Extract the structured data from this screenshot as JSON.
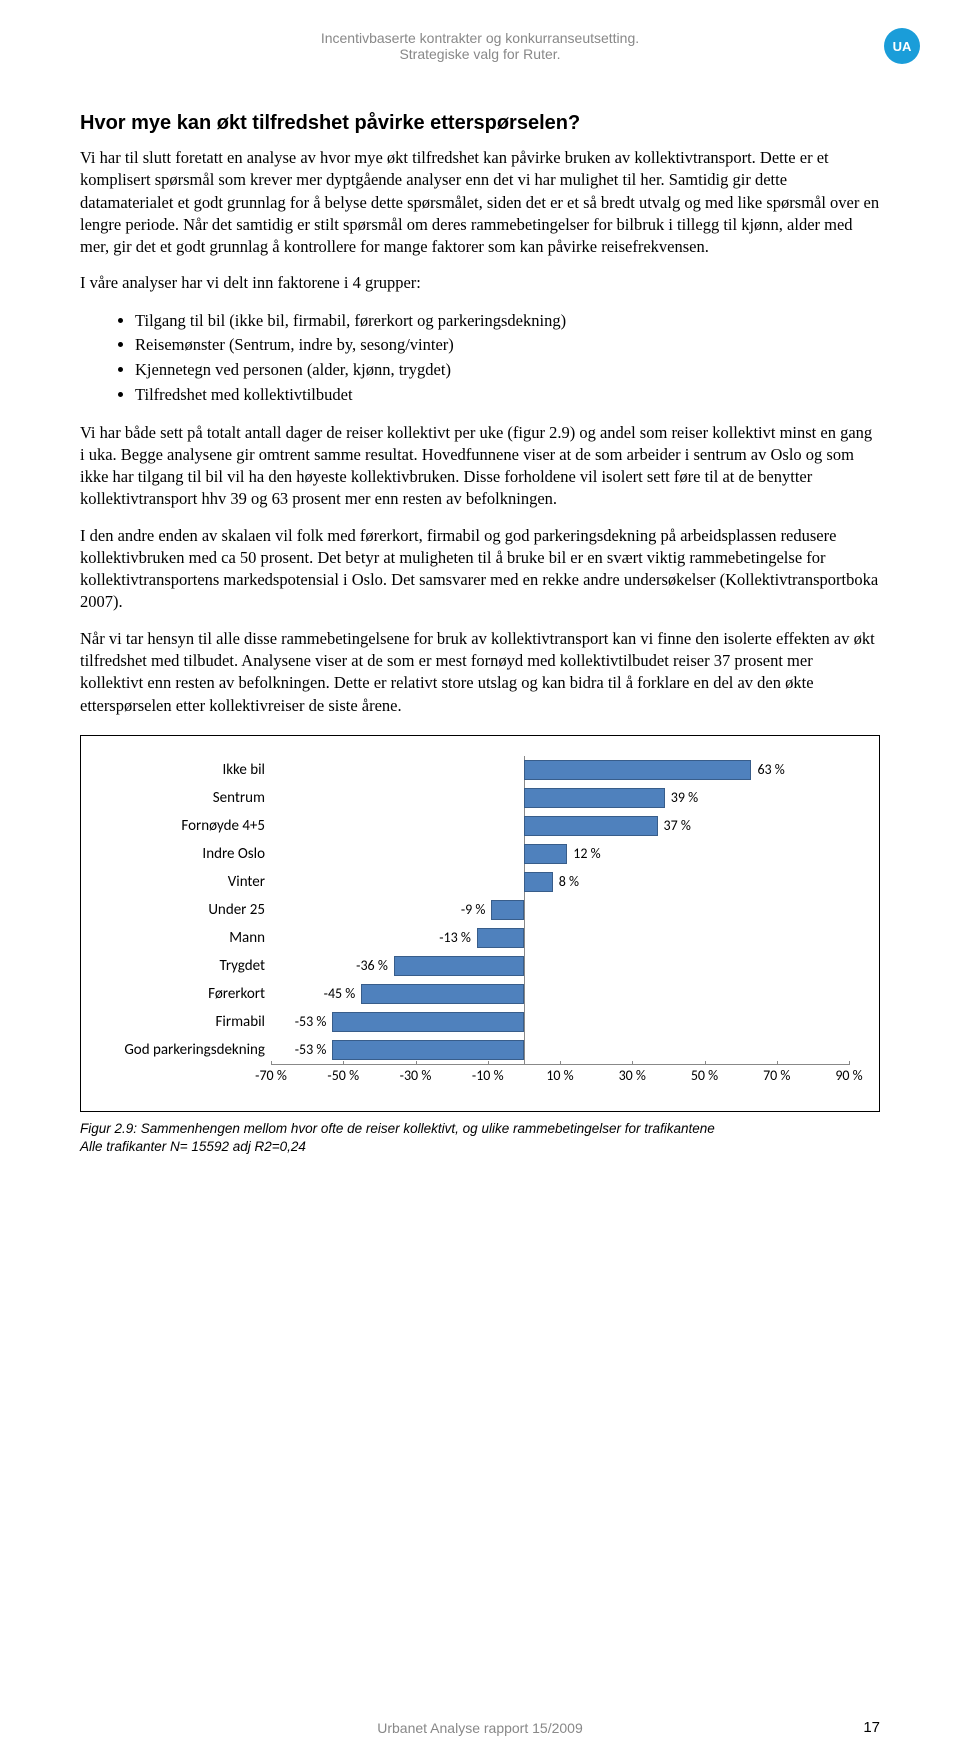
{
  "header": {
    "line1": "Incentivbaserte kontrakter og konkurranseutsetting.",
    "line2": "Strategiske valg for Ruter.",
    "badge": "UA"
  },
  "heading": "Hvor mye kan økt tilfredshet påvirke etterspørselen?",
  "paragraphs": {
    "p1": "Vi har til slutt foretatt en analyse av hvor mye økt tilfredshet kan påvirke bruken av kollektivtransport. Dette er et komplisert spørsmål som krever mer dyptgående analyser enn det vi har mulighet til her. Samtidig gir dette datamaterialet et godt grunnlag for å belyse dette spørsmålet, siden det er et så bredt utvalg og med like spørsmål over en lengre periode. Når det samtidig er stilt spørsmål om deres rammebetingelser for bilbruk i tillegg til kjønn, alder med mer, gir det et godt grunnlag å kontrollere for mange faktorer som kan påvirke reisefrekvensen.",
    "p2": "I våre analyser har vi delt inn faktorene i 4 grupper:",
    "p3": "Vi har både sett på totalt antall dager de reiser kollektivt per uke (figur 2.9) og andel som reiser kollektivt minst en gang i uka. Begge analysene gir omtrent samme resultat. Hovedfunnene viser at de som arbeider i sentrum av Oslo og som ikke har tilgang til bil vil ha den høyeste kollektivbruken. Disse forholdene vil isolert sett føre til at de benytter kollektivtransport hhv 39 og 63 prosent mer enn resten av befolkningen.",
    "p4": "I den andre enden av skalaen vil folk med førerkort, firmabil og god parkeringsdekning på arbeidsplassen redusere kollektivbruken med ca 50 prosent. Det betyr at muligheten til å bruke bil er en svært viktig rammebetingelse for kollektivtransportens markedspotensial i Oslo. Det samsvarer med en rekke andre undersøkelser (Kollektivtransportboka 2007).",
    "p5": "Når vi tar hensyn til alle disse rammebetingelsene for bruk av kollektivtransport kan vi finne den isolerte effekten av økt tilfredshet med tilbudet. Analysene viser at de som er mest fornøyd med kollektivtilbudet reiser 37 prosent mer kollektivt enn resten av befolkningen. Dette er relativt store utslag og kan bidra til å forklare en del av den økte etterspørselen etter kollektivreiser de siste årene."
  },
  "bullets": [
    "Tilgang til bil (ikke bil, firmabil, førerkort og parkeringsdekning)",
    "Reisemønster (Sentrum, indre by, sesong/vinter)",
    "Kjennetegn ved personen (alder, kjønn, trygdet)",
    "Tilfredshet med kollektivtilbudet"
  ],
  "chart": {
    "type": "bar-horizontal",
    "xmin": -70,
    "xmax": 90,
    "xtick_step": 20,
    "xticks": [
      -70,
      -50,
      -30,
      -10,
      10,
      30,
      50,
      70,
      90
    ],
    "bar_color": "#4f81bd",
    "bar_border": "#385d8a",
    "background_color": "#ffffff",
    "grid_color": "#888888",
    "label_fontsize": 15,
    "value_fontsize": 14,
    "rows": [
      {
        "label": "Ikke bil",
        "value": 63,
        "display": "63 %"
      },
      {
        "label": "Sentrum",
        "value": 39,
        "display": "39 %"
      },
      {
        "label": "Fornøyde 4+5",
        "value": 37,
        "display": "37 %"
      },
      {
        "label": "Indre Oslo",
        "value": 12,
        "display": "12 %"
      },
      {
        "label": "Vinter",
        "value": 8,
        "display": "8 %"
      },
      {
        "label": "Under 25",
        "value": -9,
        "display": "-9 %"
      },
      {
        "label": "Mann",
        "value": -13,
        "display": "-13 %"
      },
      {
        "label": "Trygdet",
        "value": -36,
        "display": "-36 %"
      },
      {
        "label": "Førerkort",
        "value": -45,
        "display": "-45 %"
      },
      {
        "label": "Firmabil",
        "value": -53,
        "display": "-53 %"
      },
      {
        "label": "God parkeringsdekning",
        "value": -53,
        "display": "-53 %"
      }
    ]
  },
  "caption": {
    "line1": "Figur 2.9: Sammenhengen mellom hvor ofte de reiser kollektivt, og ulike rammebetingelser for trafikantene",
    "line2": "Alle trafikanter N= 15592 adj R2=0,24"
  },
  "footer": {
    "text": "Urbanet Analyse rapport 15/2009",
    "page": "17"
  }
}
